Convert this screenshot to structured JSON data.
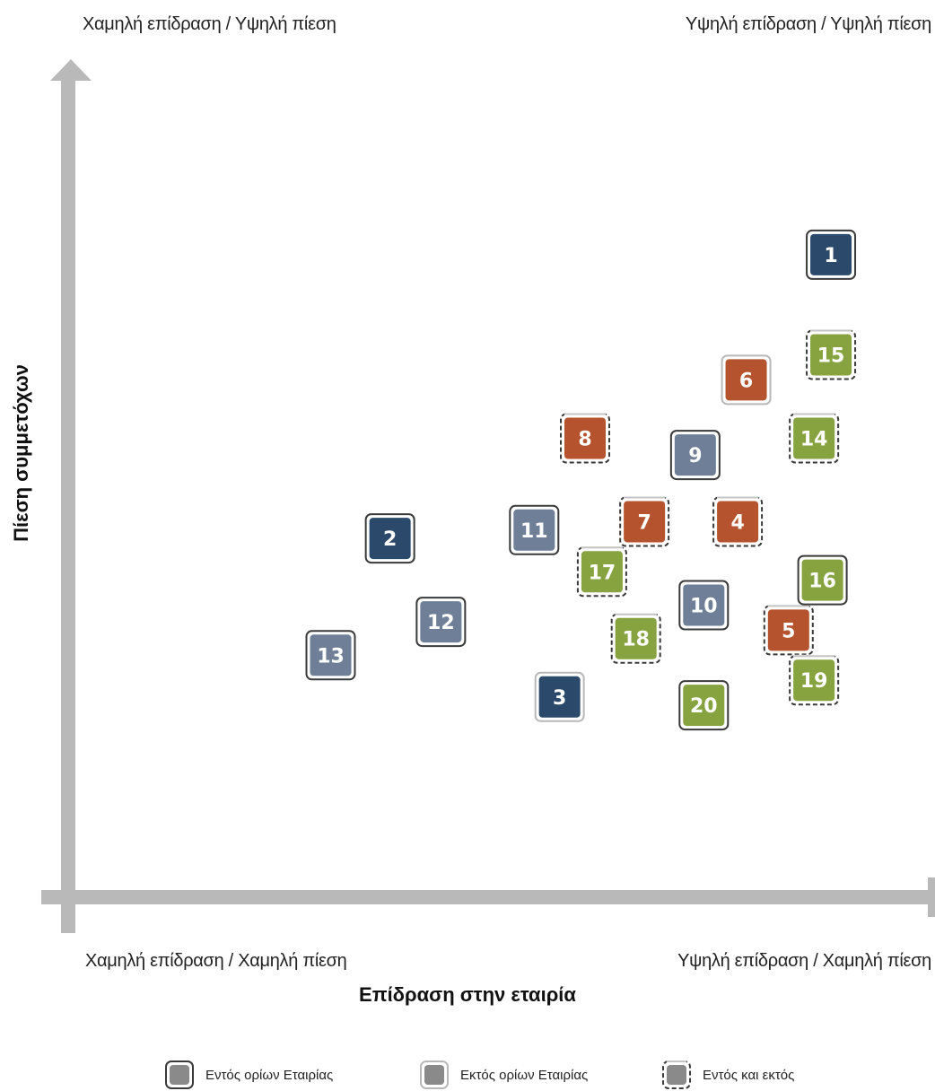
{
  "chart_data": {
    "type": "scatter",
    "xlabel": "Επίδραση στην εταιρία",
    "ylabel": "Πίεση συμμετόχων",
    "quadrant_labels": {
      "top_left": "Χαμηλή επίδραση / Υψηλή πίεση",
      "top_right": "Υψηλή επίδραση / Υψηλή πίεση",
      "bottom_left": "Χαμηλή επίδραση / Χαμηλή πίεση",
      "bottom_right": "Υψηλή επίδραση / Χαμηλή πίεση"
    },
    "xlim": [
      0,
      100
    ],
    "ylim": [
      0,
      100
    ],
    "colors": {
      "navy": "#2b4a6b",
      "slate": "#6e7f97",
      "rust": "#b5532e",
      "olive": "#86a33f",
      "axis": "#b9b9b9"
    },
    "legend": [
      {
        "label": "Εντός ορίων Εταιρίας",
        "border": "solid"
      },
      {
        "label": "Εκτός ορίων Εταιρίας",
        "border": "light"
      },
      {
        "label": "Εντός και εκτός",
        "border": "dashed"
      }
    ],
    "points": [
      {
        "id": "1",
        "x": 89,
        "y": 77,
        "color": "navy",
        "border": "solid"
      },
      {
        "id": "2",
        "x": 37,
        "y": 43,
        "color": "navy",
        "border": "solid"
      },
      {
        "id": "3",
        "x": 57,
        "y": 24,
        "color": "navy",
        "border": "light"
      },
      {
        "id": "4",
        "x": 78,
        "y": 45,
        "color": "rust",
        "border": "dashed"
      },
      {
        "id": "5",
        "x": 84,
        "y": 32,
        "color": "rust",
        "border": "dashed"
      },
      {
        "id": "6",
        "x": 79,
        "y": 62,
        "color": "rust",
        "border": "light"
      },
      {
        "id": "7",
        "x": 67,
        "y": 45,
        "color": "rust",
        "border": "dashed"
      },
      {
        "id": "8",
        "x": 60,
        "y": 55,
        "color": "rust",
        "border": "dashed"
      },
      {
        "id": "9",
        "x": 73,
        "y": 53,
        "color": "slate",
        "border": "solid"
      },
      {
        "id": "10",
        "x": 74,
        "y": 35,
        "color": "slate",
        "border": "solid"
      },
      {
        "id": "11",
        "x": 54,
        "y": 44,
        "color": "slate",
        "border": "solid"
      },
      {
        "id": "12",
        "x": 43,
        "y": 33,
        "color": "slate",
        "border": "solid"
      },
      {
        "id": "13",
        "x": 30,
        "y": 29,
        "color": "slate",
        "border": "solid"
      },
      {
        "id": "14",
        "x": 87,
        "y": 55,
        "color": "olive",
        "border": "dashed"
      },
      {
        "id": "15",
        "x": 89,
        "y": 65,
        "color": "olive",
        "border": "dashed"
      },
      {
        "id": "16",
        "x": 88,
        "y": 38,
        "color": "olive",
        "border": "solid"
      },
      {
        "id": "17",
        "x": 62,
        "y": 39,
        "color": "olive",
        "border": "dashed"
      },
      {
        "id": "18",
        "x": 66,
        "y": 31,
        "color": "olive",
        "border": "dashed"
      },
      {
        "id": "19",
        "x": 87,
        "y": 26,
        "color": "olive",
        "border": "dashed"
      },
      {
        "id": "20",
        "x": 74,
        "y": 23,
        "color": "olive",
        "border": "solid"
      }
    ]
  }
}
